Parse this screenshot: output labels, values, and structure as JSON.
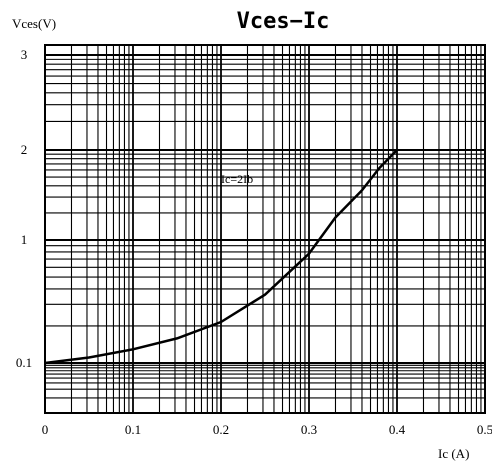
{
  "chart_data": {
    "type": "line",
    "title": "Vces−Ic",
    "ylabel": "Vces(V)",
    "xlabel": "Ic (A)",
    "x_ticks": [
      "0",
      "0.1",
      "0.2",
      "0.3",
      "0.4",
      "0.5"
    ],
    "y_ticks": [
      "0.1",
      "1",
      "2",
      "3"
    ],
    "annotation": "Ic=2Ib",
    "grid": true,
    "xlim": [
      0,
      0.5
    ],
    "series": [
      {
        "x": [
          0.0,
          0.05,
          0.1,
          0.15,
          0.2,
          0.25,
          0.3,
          0.33,
          0.36,
          0.38,
          0.4
        ],
        "y": [
          0.1,
          0.14,
          0.2,
          0.28,
          0.4,
          0.6,
          0.9,
          1.25,
          1.55,
          1.8,
          2.0
        ]
      }
    ],
    "line_color": "#000000",
    "grid_color": "#000000"
  }
}
